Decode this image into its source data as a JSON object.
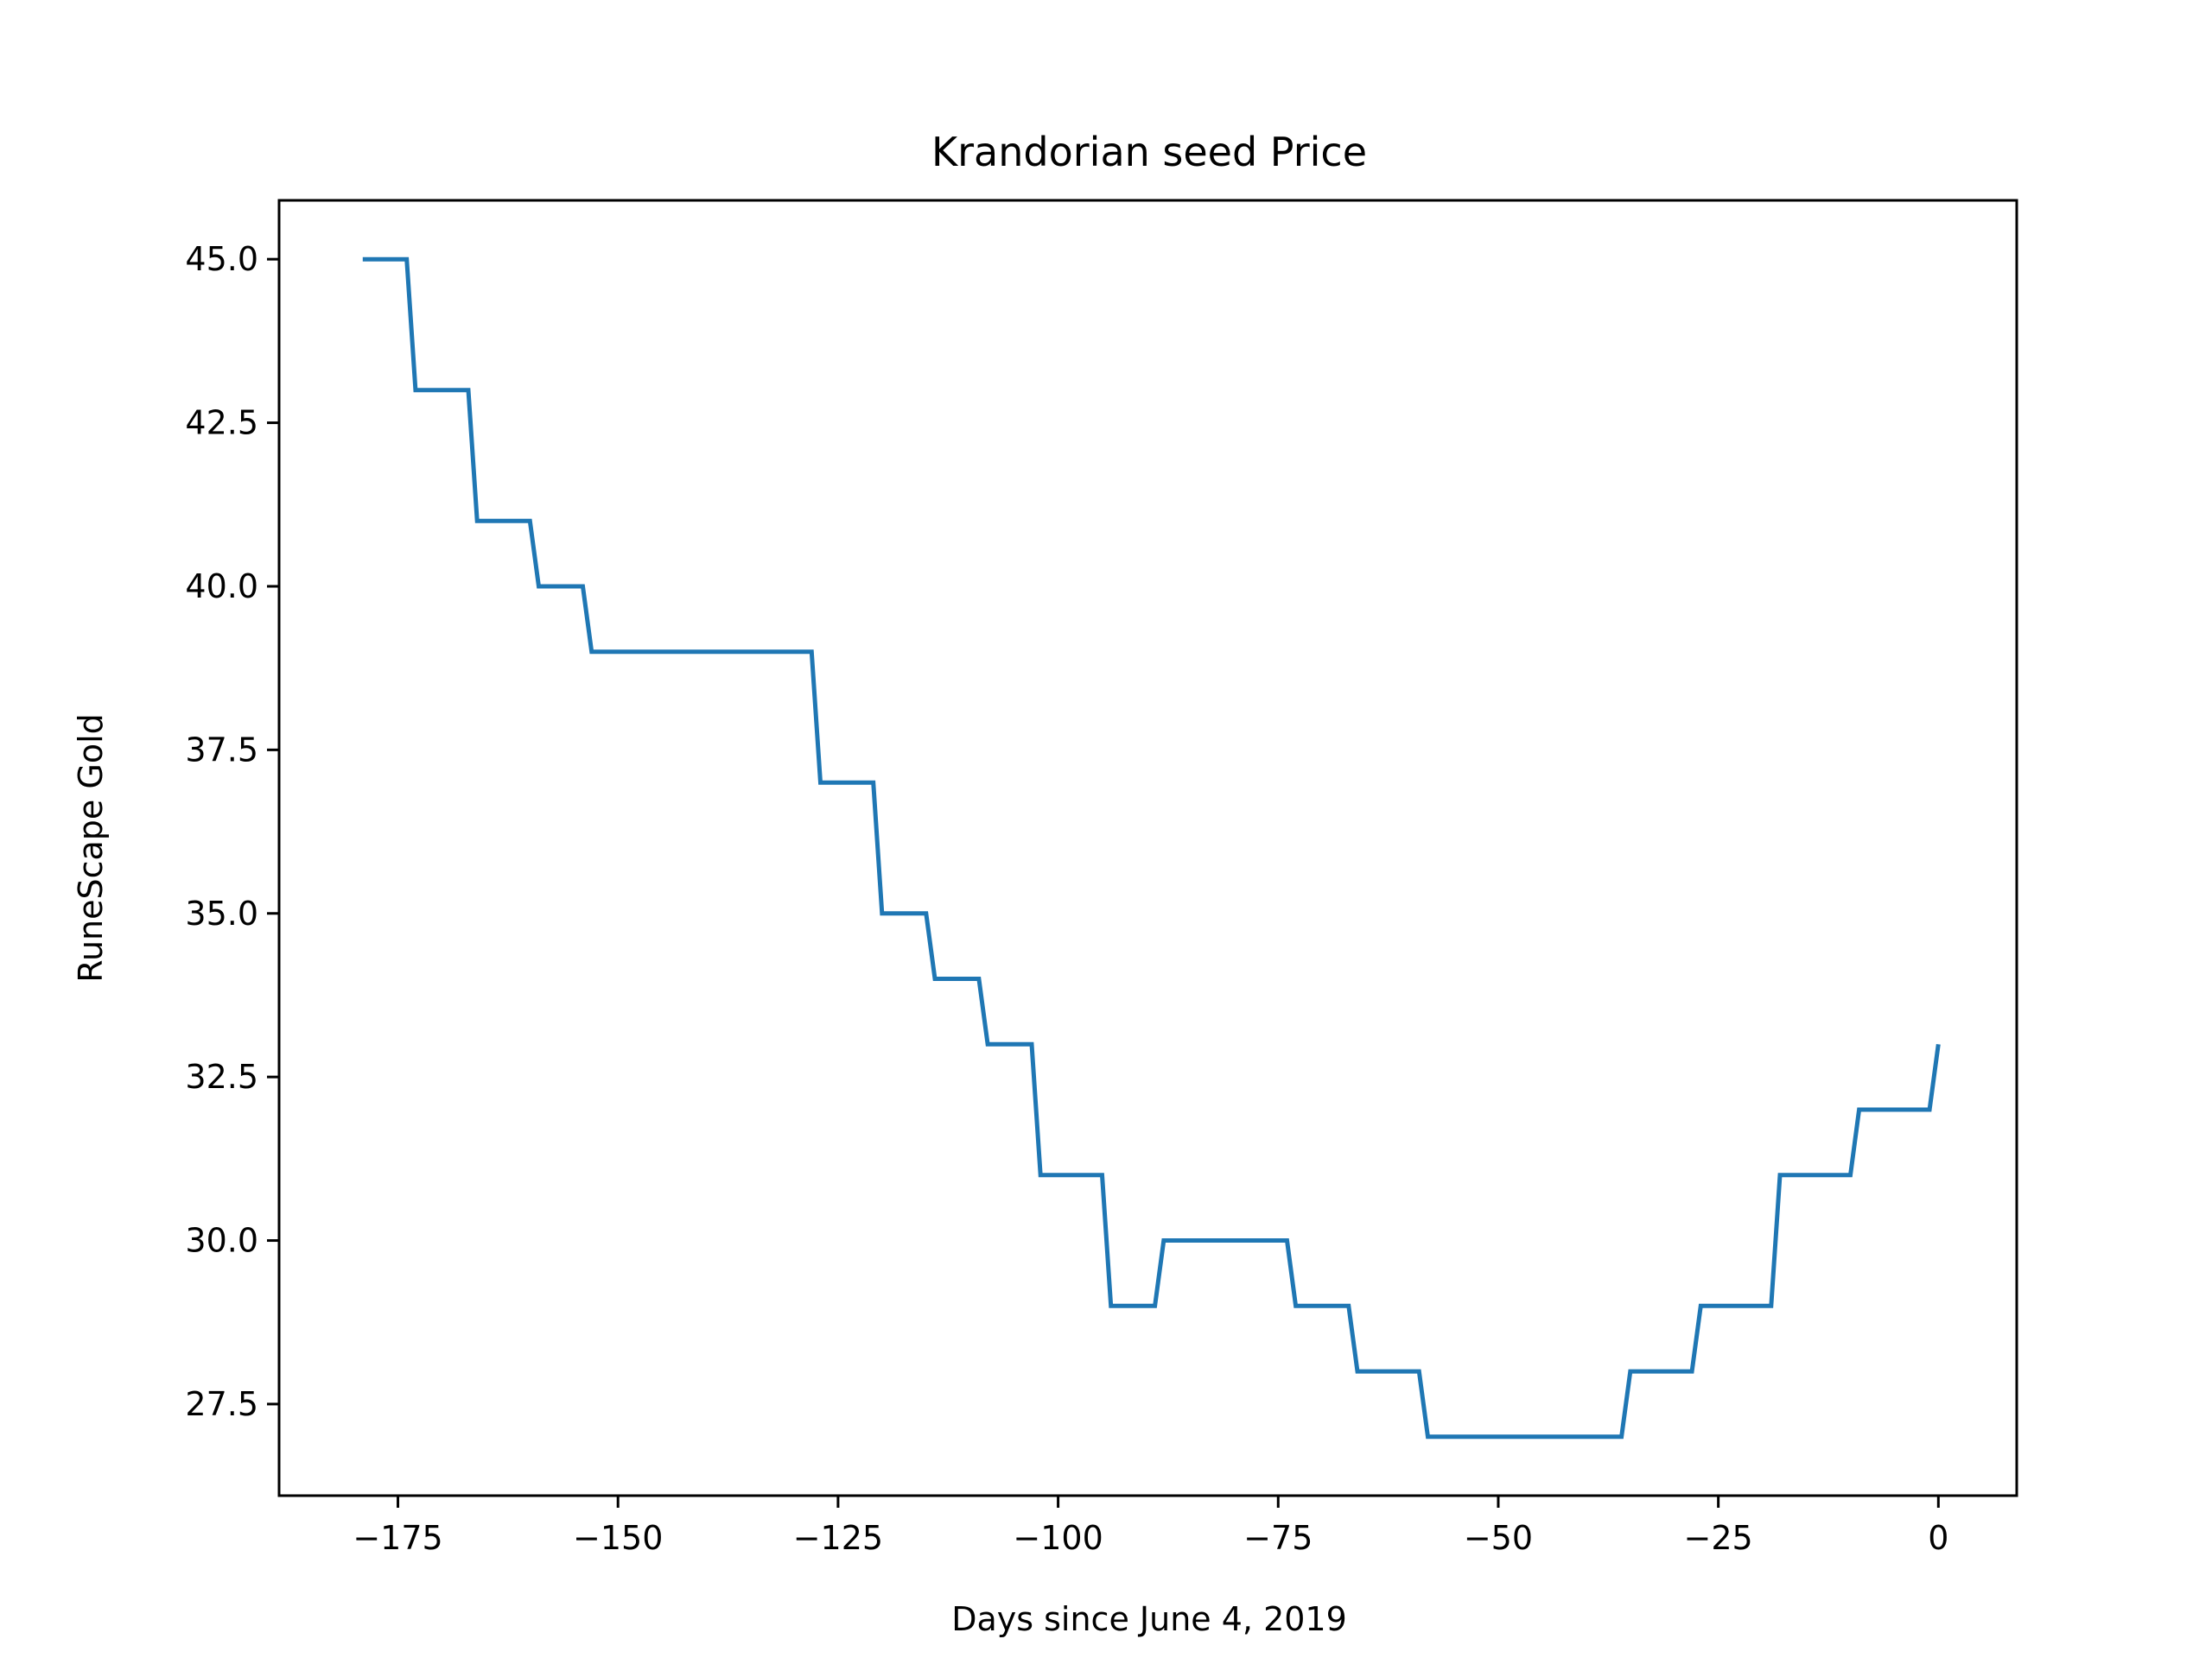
{
  "chart_data": {
    "type": "line",
    "title": "Krandorian seed Price",
    "xlabel": "Days since June 4, 2019",
    "ylabel": "RuneScape Gold",
    "xlim": [
      -188.5,
      8.9
    ],
    "ylim": [
      26.1,
      45.9
    ],
    "xticks": [
      -175,
      -150,
      -125,
      -100,
      -75,
      -50,
      -25,
      0
    ],
    "xtick_labels": [
      "−175",
      "−150",
      "−125",
      "−100",
      "−75",
      "−50",
      "−25",
      "0"
    ],
    "yticks": [
      27.5,
      30.0,
      32.5,
      35.0,
      37.5,
      40.0,
      42.5,
      45.0
    ],
    "ytick_labels": [
      "27.5",
      "30.0",
      "32.5",
      "35.0",
      "37.5",
      "40.0",
      "42.5",
      "45.0"
    ],
    "grid": false,
    "series": [
      {
        "color": "#1f77b4",
        "x": [
          -179,
          -174,
          -173,
          -167,
          -166,
          -160,
          -159,
          -154,
          -153,
          -128,
          -127,
          -121,
          -120,
          -115,
          -114,
          -109,
          -108,
          -103,
          -102,
          -95,
          -94,
          -89,
          -88,
          -74,
          -73,
          -67,
          -66,
          -59,
          -58,
          -36,
          -35,
          -28,
          -27,
          -19,
          -18,
          -10,
          -9,
          -1,
          0
        ],
        "y": [
          45,
          45,
          43,
          43,
          41,
          41,
          40,
          40,
          39,
          39,
          37,
          37,
          35,
          35,
          34,
          34,
          33,
          33,
          31,
          31,
          29,
          29,
          30,
          30,
          29,
          29,
          28,
          28,
          27,
          27,
          28,
          28,
          29,
          29,
          31,
          31,
          32,
          32,
          33
        ]
      }
    ]
  }
}
